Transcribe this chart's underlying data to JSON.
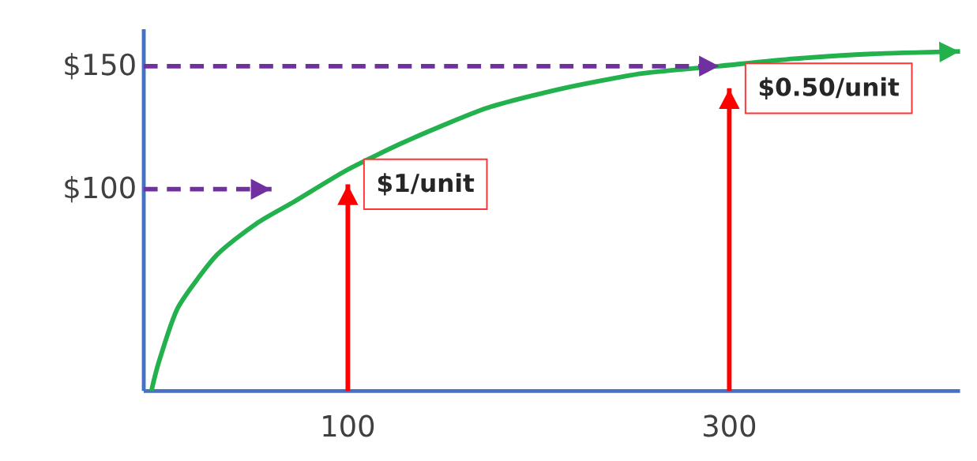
{
  "chart_data": {
    "type": "line",
    "xlim": [
      -7,
      421
    ],
    "ylim": [
      18,
      165
    ],
    "xticks": [
      100,
      300
    ],
    "yticks": [
      {
        "value": 100,
        "label": "$100"
      },
      {
        "value": 150,
        "label": "$150"
      }
    ],
    "grid": false,
    "marker": "none",
    "annotations": [
      {
        "text": "$1/unit",
        "x": 100,
        "y": 102
      },
      {
        "text": "$0.50/unit",
        "x": 300,
        "y": 141
      }
    ],
    "series": [
      {
        "color": "#22b14c",
        "line_style": "solid",
        "x": [
          -3,
          1,
          11,
          31,
          52,
          72,
          100,
          132,
          173,
          213,
          254,
          294,
          334,
          375,
          421
        ],
        "values": [
          18,
          30,
          52,
          73,
          86,
          95,
          108,
          120,
          133,
          141,
          147,
          150,
          153,
          155,
          156
        ]
      },
      {
        "color": "#ff0000",
        "line_style": "solid",
        "x": [
          100,
          100
        ],
        "values": [
          18,
          102
        ]
      },
      {
        "color": "#ff0000",
        "line_style": "solid",
        "x": [
          300,
          300
        ],
        "values": [
          18,
          141
        ]
      },
      {
        "color": "#7030a0",
        "line_style": "dashed",
        "x": [
          -7,
          60
        ],
        "values": [
          100,
          100
        ]
      },
      {
        "color": "#7030a0",
        "line_style": "dashed",
        "x": [
          -7,
          295
        ],
        "values": [
          150,
          150
        ]
      }
    ]
  }
}
